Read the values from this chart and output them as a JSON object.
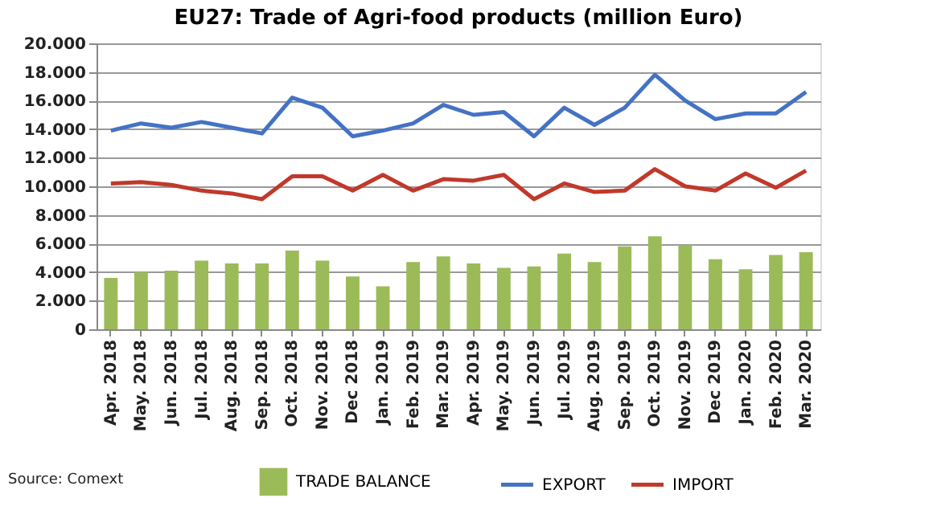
{
  "chart_data": {
    "type": "bar",
    "title": "EU27: Trade of Agri-food products (million Euro)",
    "categories": [
      "Apr. 2018",
      "May. 2018",
      "Jun. 2018",
      "Jul. 2018",
      "Aug. 2018",
      "Sep. 2018",
      "Oct. 2018",
      "Nov. 2018",
      "Dec 2018",
      "Jan. 2019",
      "Feb. 2019",
      "Mar. 2019",
      "Apr. 2019",
      "May. 2019",
      "Jun. 2019",
      "Jul. 2019",
      "Aug. 2019",
      "Sep. 2019",
      "Oct. 2019",
      "Nov. 2019",
      "Dec 2019",
      "Jan. 2020",
      "Feb. 2020",
      "Mar. 2020"
    ],
    "series": [
      {
        "name": "TRADE BALANCE",
        "color": "#9bbb59",
        "values": [
          3600,
          4000,
          4100,
          4800,
          4600,
          4600,
          5500,
          4800,
          3700,
          3000,
          4700,
          5100,
          4600,
          4300,
          4400,
          5300,
          4700,
          5800,
          6500,
          5900,
          4900,
          4200,
          5200,
          5400
        ]
      },
      {
        "name": "EXPORT",
        "type": "line",
        "color": "#4472c4",
        "values": [
          13900,
          14400,
          14100,
          14500,
          14100,
          13700,
          16200,
          15500,
          13500,
          13900,
          14400,
          15700,
          15000,
          15200,
          13500,
          15500,
          14300,
          15500,
          17800,
          16000,
          14700,
          15100,
          15100,
          16600
        ]
      },
      {
        "name": "IMPORT",
        "type": "line",
        "color": "#c0392b",
        "values": [
          10200,
          10300,
          10100,
          9700,
          9500,
          9100,
          10700,
          10700,
          9700,
          10800,
          9700,
          10500,
          10400,
          10800,
          9100,
          10200,
          9600,
          9700,
          11200,
          10000,
          9700,
          10900,
          9900,
          11100
        ]
      }
    ],
    "ylim": [
      0,
      20000
    ],
    "yticks": [
      0,
      {
        "value": 2000,
        "label": "2.000"
      },
      {
        "value": 4000,
        "label": "4.000"
      },
      {
        "value": 6000,
        "label": "6.000"
      },
      {
        "value": 8000,
        "label": "8.000"
      },
      {
        "value": 10000,
        "label": "10.000"
      },
      {
        "value": 12000,
        "label": "12.000"
      },
      {
        "value": 14000,
        "label": "14.000"
      },
      {
        "value": 16000,
        "label": "16.000"
      },
      {
        "value": 18000,
        "label": "18.000"
      },
      {
        "value": 20000,
        "label": "20.000"
      }
    ],
    "grid": "y",
    "legend": "bottom",
    "annotations": [
      "Source: Comext"
    ]
  }
}
